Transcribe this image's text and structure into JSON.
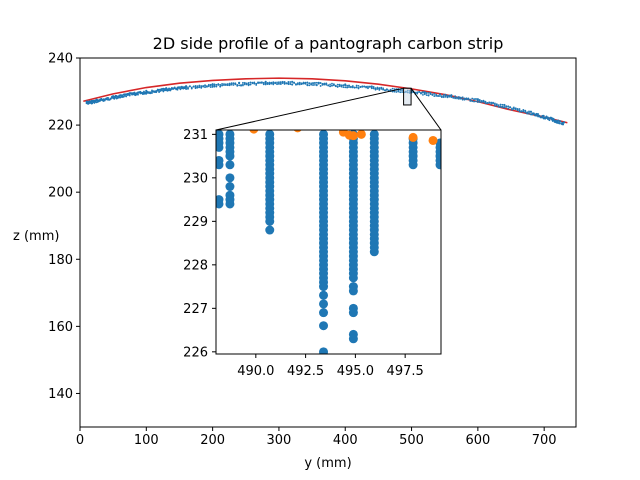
{
  "chart_data": {
    "type": "scatter",
    "title": "2D side profile of a pantograph carbon strip",
    "xlabel": "y (mm)",
    "ylabel": "z (mm)",
    "xlim": [
      0,
      748
    ],
    "ylim": [
      130,
      240
    ],
    "xticks": [
      "0",
      "100",
      "200",
      "300",
      "400",
      "500",
      "600",
      "700"
    ],
    "xtick_values": [
      0,
      100,
      200,
      300,
      400,
      500,
      600,
      700
    ],
    "yticks": [
      "140",
      "160",
      "180",
      "200",
      "220",
      "240"
    ],
    "ytick_values": [
      140,
      160,
      180,
      200,
      220,
      240
    ],
    "grid": false,
    "colors": {
      "points": "#1f77b4",
      "fit": "#d62728",
      "surface": "#ff7f0e"
    },
    "profile_points": [
      [
        10,
        227.0
      ],
      [
        25,
        227.6
      ],
      [
        50,
        228.6
      ],
      [
        75,
        229.5
      ],
      [
        100,
        230.2
      ],
      [
        130,
        231.0
      ],
      [
        160,
        231.6
      ],
      [
        200,
        232.2
      ],
      [
        240,
        232.6
      ],
      [
        280,
        232.9
      ],
      [
        320,
        232.9
      ],
      [
        360,
        232.6
      ],
      [
        400,
        232.1
      ],
      [
        440,
        231.5
      ],
      [
        480,
        230.7
      ],
      [
        520,
        229.8
      ],
      [
        560,
        228.9
      ],
      [
        600,
        227.7
      ],
      [
        640,
        226.0
      ],
      [
        680,
        224.0
      ],
      [
        710,
        222.2
      ],
      [
        730,
        220.8
      ]
    ],
    "fit_curve": [
      [
        5,
        227.1
      ],
      [
        50,
        229.3
      ],
      [
        100,
        231.2
      ],
      [
        150,
        232.5
      ],
      [
        200,
        233.3
      ],
      [
        250,
        233.8
      ],
      [
        300,
        234.0
      ],
      [
        350,
        233.8
      ],
      [
        400,
        233.2
      ],
      [
        450,
        232.2
      ],
      [
        500,
        230.8
      ],
      [
        550,
        229.1
      ],
      [
        600,
        227.0
      ],
      [
        650,
        224.5
      ],
      [
        700,
        222.4
      ],
      [
        735,
        220.7
      ]
    ],
    "zoom_box": {
      "x": [
        488.0,
        499.3
      ],
      "y": [
        226.0,
        231.0
      ]
    },
    "inset": {
      "xlim": [
        488.0,
        499.3
      ],
      "ylim": [
        225.95,
        231.1
      ],
      "xticks": [
        "490.0",
        "492.5",
        "495.0",
        "497.5"
      ],
      "xtick_values": [
        490.0,
        492.5,
        495.0,
        497.5
      ],
      "yticks": [
        "226",
        "227",
        "228",
        "229",
        "230",
        "231"
      ],
      "ytick_values": [
        226,
        227,
        228,
        229,
        230,
        231
      ],
      "columns": [
        {
          "x": 488.15,
          "z": [
            231.0,
            230.9,
            230.8,
            230.7,
            230.4,
            230.3,
            229.5,
            229.4
          ]
        },
        {
          "x": 488.7,
          "z": [
            231.0,
            230.9,
            230.8,
            230.7,
            230.6,
            230.5,
            230.3,
            230.0,
            229.8,
            229.6,
            229.5,
            229.4
          ]
        },
        {
          "x": 490.7,
          "z": [
            231.0,
            230.9,
            230.8,
            230.7,
            230.6,
            230.5,
            230.4,
            230.3,
            230.2,
            230.1,
            230.0,
            229.9,
            229.8,
            229.7,
            229.6,
            229.5,
            229.4,
            229.3,
            229.2,
            229.1,
            229.0,
            228.8
          ]
        },
        {
          "x": 493.4,
          "z": [
            231.0,
            230.9,
            230.8,
            230.7,
            230.6,
            230.5,
            230.4,
            230.3,
            230.2,
            230.1,
            230.0,
            229.9,
            229.8,
            229.7,
            229.6,
            229.5,
            229.4,
            229.3,
            229.2,
            229.1,
            229.0,
            228.9,
            228.8,
            228.7,
            228.6,
            228.5,
            228.4,
            228.3,
            228.2,
            228.1,
            228.0,
            227.9,
            227.8,
            227.7,
            227.6,
            227.5,
            227.3,
            227.1,
            226.9,
            226.6,
            226.0
          ]
        },
        {
          "x": 494.9,
          "z": [
            231.0,
            230.9,
            230.8,
            230.7,
            230.6,
            230.5,
            230.4,
            230.3,
            230.2,
            230.1,
            230.0,
            229.9,
            229.8,
            229.7,
            229.6,
            229.5,
            229.4,
            229.3,
            229.2,
            229.1,
            229.0,
            228.9,
            228.8,
            228.7,
            228.6,
            228.5,
            228.4,
            228.3,
            228.2,
            228.1,
            228.0,
            227.9,
            227.8,
            227.7,
            227.5,
            227.4,
            227.0,
            226.9,
            226.4,
            226.3
          ]
        },
        {
          "x": 495.95,
          "z": [
            231.0,
            230.9,
            230.8,
            230.7,
            230.6,
            230.5,
            230.4,
            230.3,
            230.2,
            230.1,
            230.0,
            229.9,
            229.8,
            229.7,
            229.6,
            229.5,
            229.4,
            229.3,
            229.2,
            229.1,
            229.0,
            228.9,
            228.8,
            228.7,
            228.6,
            228.5,
            228.4,
            228.3
          ]
        },
        {
          "x": 497.9,
          "z": [
            230.9,
            230.8,
            230.7,
            230.6,
            230.5,
            230.4,
            230.3
          ]
        },
        {
          "x": 499.25,
          "z": [
            230.8,
            230.7,
            230.6,
            230.5,
            230.4,
            230.3
          ]
        }
      ],
      "surface_points": [
        [
          489.9,
          231.12
        ],
        [
          492.1,
          231.15
        ],
        [
          494.4,
          231.05
        ],
        [
          494.7,
          230.98
        ],
        [
          494.9,
          230.97
        ],
        [
          495.3,
          231.0
        ],
        [
          497.9,
          230.93
        ],
        [
          498.9,
          230.86
        ]
      ]
    }
  }
}
